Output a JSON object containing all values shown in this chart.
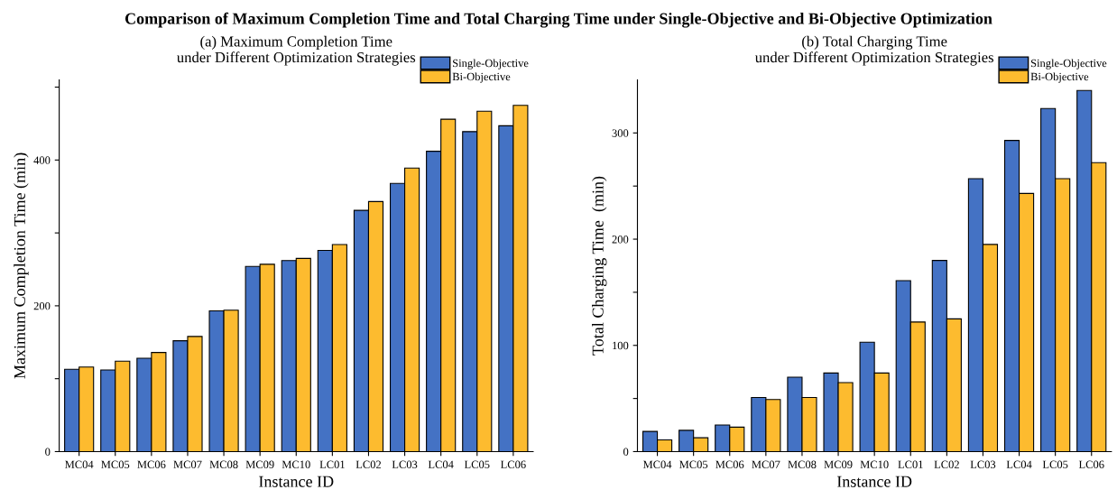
{
  "chart_data": [
    {
      "type": "bar",
      "title": "(a) Maximum Completion Time\nunder Different Optimization Strategies",
      "xlabel": "Instance ID",
      "ylabel": "Maximum Completion Time (min)",
      "categories": [
        "MC04",
        "MC05",
        "MC06",
        "MC07",
        "MC08",
        "MC09",
        "MC10",
        "LC01",
        "LC02",
        "LC03",
        "LC04",
        "LC05",
        "LC06"
      ],
      "series": [
        {
          "name": "Single-Objective",
          "color": "#4472c4",
          "values": [
            113,
            112,
            128,
            152,
            193,
            254,
            262,
            276,
            331,
            368,
            412,
            439,
            447
          ]
        },
        {
          "name": "Bi-Objective",
          "color": "#fdbb2f",
          "values": [
            116,
            124,
            136,
            158,
            194,
            257,
            265,
            284,
            343,
            389,
            456,
            467,
            475
          ]
        }
      ],
      "ylim": [
        0,
        510
      ],
      "yticks": [
        0,
        {
          "value": 100,
          "label": null
        },
        200,
        {
          "value": 300,
          "label": null
        },
        400,
        {
          "value": 500,
          "label": null
        }
      ],
      "grid": false,
      "legend": "top right",
      "annotations": [
        "Comparison of Maximum Completion Time and Total Charging Time under Single-Objective and Bi-Objective Optimization"
      ]
    },
    {
      "type": "bar",
      "title": "(b) Total Charging Time\nunder Different Optimization Strategies",
      "xlabel": "Instance ID",
      "ylabel": "Total Charging Time  (min)",
      "categories": [
        "MC04",
        "MC05",
        "MC06",
        "MC07",
        "MC08",
        "MC09",
        "MC10",
        "LC01",
        "LC02",
        "LC03",
        "LC04",
        "LC05",
        "LC06"
      ],
      "series": [
        {
          "name": "Single-Objective",
          "color": "#4472c4",
          "values": [
            19,
            20,
            25,
            51,
            70,
            74,
            103,
            161,
            180,
            257,
            293,
            323,
            340
          ]
        },
        {
          "name": "Bi-Objective",
          "color": "#fdbb2f",
          "values": [
            11,
            13,
            23,
            49,
            51,
            65,
            74,
            122,
            125,
            195,
            243,
            257,
            272
          ]
        }
      ],
      "ylim": [
        0,
        350
      ],
      "yticks": [
        0,
        {
          "value": 50,
          "label": null
        },
        100,
        {
          "value": 150,
          "label": null
        },
        200,
        {
          "value": 250,
          "label": null
        },
        300
      ],
      "grid": false,
      "legend": "top right"
    }
  ]
}
